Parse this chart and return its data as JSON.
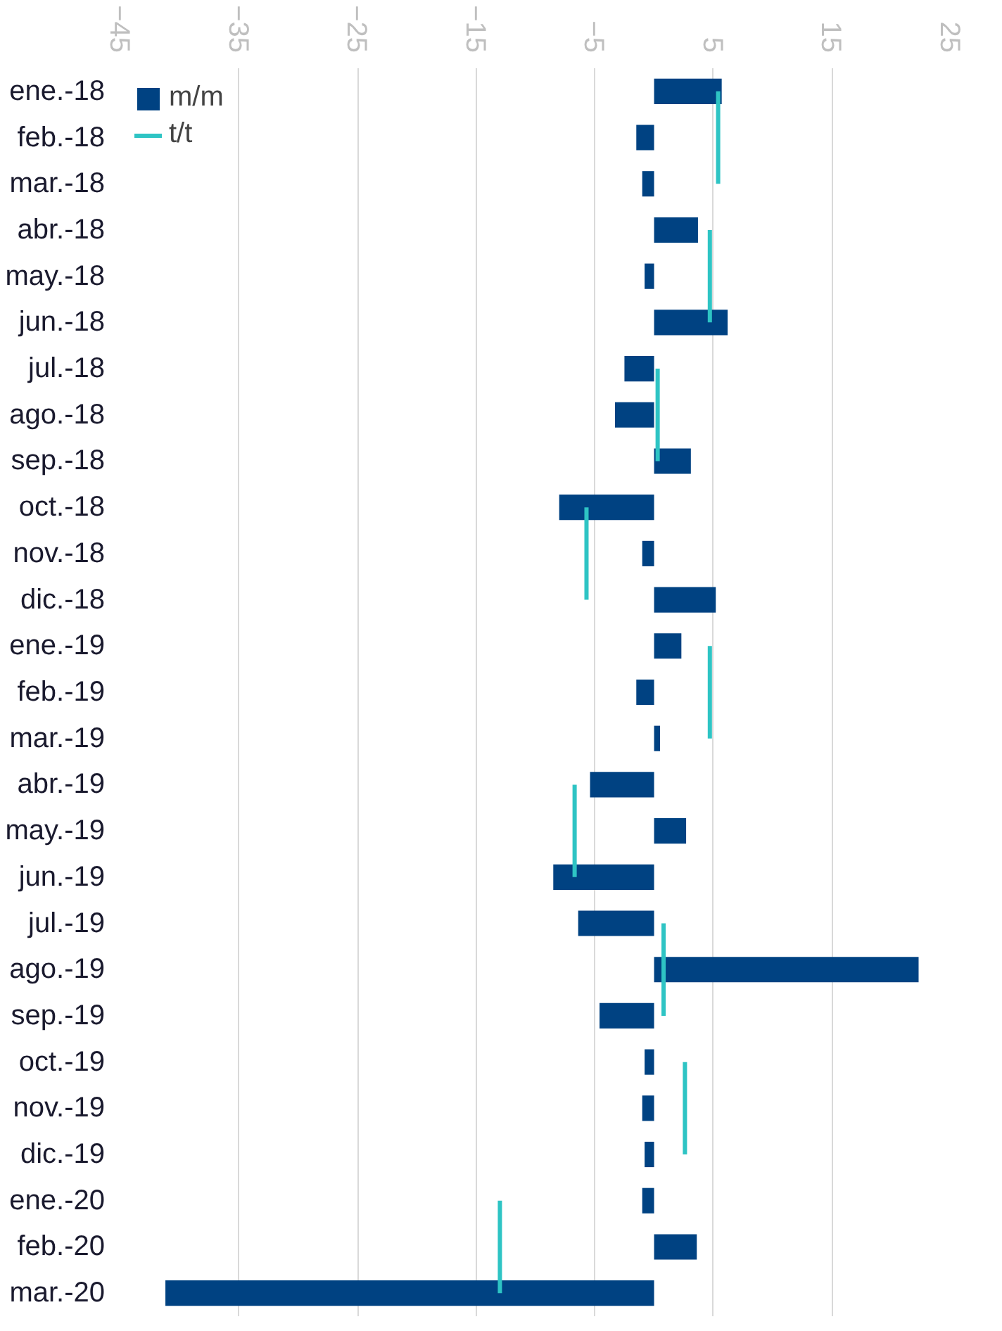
{
  "chart_data": {
    "type": "bar",
    "orientation": "horizontal",
    "categories": [
      "ene.-18",
      "feb.-18",
      "mar.-18",
      "abr.-18",
      "may.-18",
      "jun.-18",
      "jul.-18",
      "ago.-18",
      "sep.-18",
      "oct.-18",
      "nov.-18",
      "dic.-18",
      "ene.-19",
      "feb.-19",
      "mar.-19",
      "abr.-19",
      "may.-19",
      "jun.-19",
      "jul.-19",
      "ago.-19",
      "sep.-19",
      "oct.-19",
      "nov.-19",
      "dic.-19",
      "ene.-20",
      "feb.-20",
      "mar.-20"
    ],
    "series": [
      {
        "name": "m/m",
        "color": "#004282",
        "values": [
          5.7,
          -1.5,
          -1.0,
          3.7,
          -0.8,
          6.2,
          -2.5,
          -3.3,
          3.1,
          -8.0,
          -1.0,
          5.2,
          2.3,
          -1.5,
          0.5,
          -5.4,
          2.7,
          -8.5,
          -6.4,
          22.3,
          -4.6,
          -0.8,
          -1.0,
          -0.8,
          -1.0,
          3.6,
          -41.2
        ]
      },
      {
        "name": "t/t",
        "type": "line",
        "color": "#2ec4c4",
        "values": [
          5.4,
          5.4,
          5.4,
          4.7,
          4.7,
          4.7,
          0.3,
          0.3,
          0.3,
          -5.7,
          -5.7,
          -5.7,
          4.7,
          4.7,
          4.7,
          -6.7,
          -6.7,
          -6.7,
          0.8,
          0.8,
          0.8,
          2.6,
          2.6,
          2.6,
          -13.0,
          -13.0,
          -13.0
        ]
      }
    ],
    "xlim": [
      -45,
      25
    ],
    "xticks": [
      -45,
      -35,
      -25,
      -15,
      -5,
      5,
      15,
      25
    ],
    "grid": "x",
    "legend": "top left"
  }
}
